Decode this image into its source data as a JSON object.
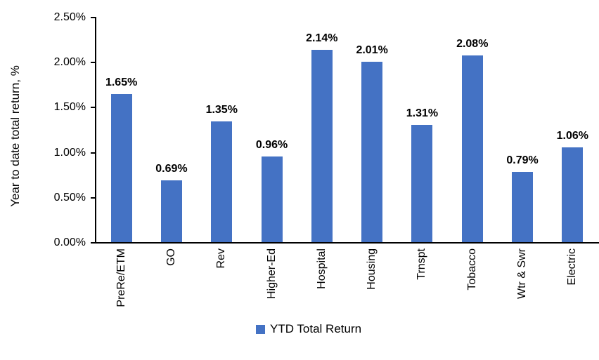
{
  "chart_data": {
    "type": "bar",
    "title": "",
    "xlabel": "",
    "ylabel": "Year to date total return, %",
    "categories": [
      "PreRe/ETM",
      "GO",
      "Rev",
      "Higher-Ed",
      "Hospital",
      "Housing",
      "Trnspt",
      "Tobacco",
      "Wtr & Swr",
      "Electric"
    ],
    "series": [
      {
        "name": "YTD Total Return",
        "values": [
          1.65,
          0.69,
          1.35,
          0.96,
          2.14,
          2.01,
          1.31,
          2.08,
          0.79,
          1.06
        ]
      }
    ],
    "data_labels": [
      "1.65%",
      "0.69%",
      "1.35%",
      "0.96%",
      "2.14%",
      "2.01%",
      "1.31%",
      "2.08%",
      "0.79%",
      "1.06%"
    ],
    "y_ticks": [
      "0.00%",
      "0.50%",
      "1.00%",
      "1.50%",
      "2.00%",
      "2.50%"
    ],
    "y_tick_step": 0.5,
    "ylim": [
      0,
      2.5
    ],
    "grid": false,
    "bar_color": "#4472C4",
    "axis_color": "#000000",
    "legend": {
      "position": "bottom",
      "entries": [
        {
          "label": "YTD Total Return",
          "color": "#4472C4"
        }
      ]
    }
  }
}
